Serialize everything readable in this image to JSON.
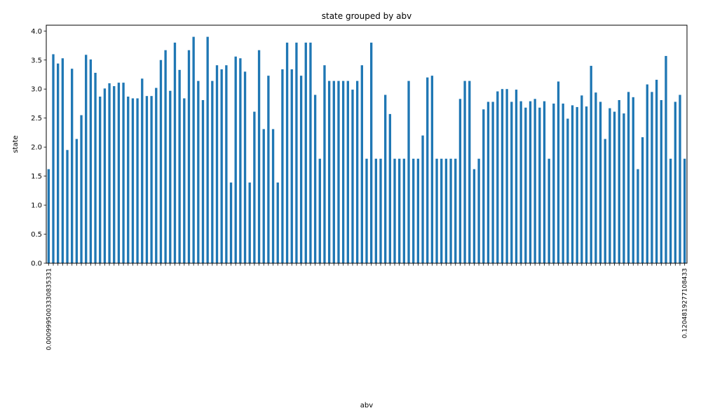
{
  "chart_data": {
    "type": "bar",
    "title": "state grouped by abv",
    "xlabel": "abv",
    "ylabel": "state",
    "ylim": [
      0,
      4.1
    ],
    "yticks": [
      "0.0",
      "0.5",
      "1.0",
      "1.5",
      "2.0",
      "2.5",
      "3.0",
      "3.5",
      "4.0"
    ],
    "ytick_values": [
      0,
      0.5,
      1,
      1.5,
      2,
      2.5,
      3,
      3.5,
      4
    ],
    "bar_color": "#1f77b4",
    "grid": false,
    "first_category": "0.0009995003330835331",
    "last_category": "0.1204819277108433",
    "values": [
      1.62,
      3.6,
      3.44,
      3.53,
      1.95,
      3.35,
      2.14,
      2.55,
      3.59,
      3.51,
      3.28,
      2.87,
      3.01,
      3.1,
      3.05,
      3.11,
      3.11,
      2.87,
      2.84,
      2.84,
      3.18,
      2.88,
      2.88,
      3.02,
      3.5,
      3.67,
      2.97,
      3.8,
      3.33,
      2.84,
      3.67,
      3.9,
      3.14,
      2.81,
      3.9,
      3.14,
      3.41,
      3.34,
      3.41,
      1.39,
      3.56,
      3.53,
      3.3,
      1.39,
      2.61,
      3.67,
      2.31,
      3.23,
      2.31,
      1.39,
      3.34,
      3.8,
      3.34,
      3.8,
      3.23,
      3.8,
      3.8,
      2.9,
      1.8,
      3.41,
      3.14,
      3.14,
      3.14,
      3.14,
      3.14,
      2.99,
      3.14,
      3.41,
      1.8,
      3.8,
      1.8,
      1.8,
      2.9,
      2.57,
      1.8,
      1.8,
      1.8,
      3.14,
      1.8,
      1.8,
      2.2,
      3.2,
      3.23,
      1.8,
      1.8,
      1.8,
      1.8,
      1.8,
      2.83,
      3.14,
      3.14,
      1.62,
      1.8,
      2.65,
      2.78,
      2.78,
      2.96,
      3.0,
      3.0,
      2.78,
      2.99,
      2.79,
      2.68,
      2.79,
      2.83,
      2.68,
      2.79,
      1.8,
      2.75,
      3.13,
      2.75,
      2.49,
      2.72,
      2.69,
      2.89,
      2.7,
      3.4,
      2.94,
      2.78,
      2.14,
      2.67,
      2.61,
      2.81,
      2.58,
      2.95,
      2.86,
      1.62,
      2.17,
      3.08,
      2.95,
      3.16,
      2.81,
      3.57,
      1.8,
      2.78,
      2.9,
      1.8
    ]
  }
}
